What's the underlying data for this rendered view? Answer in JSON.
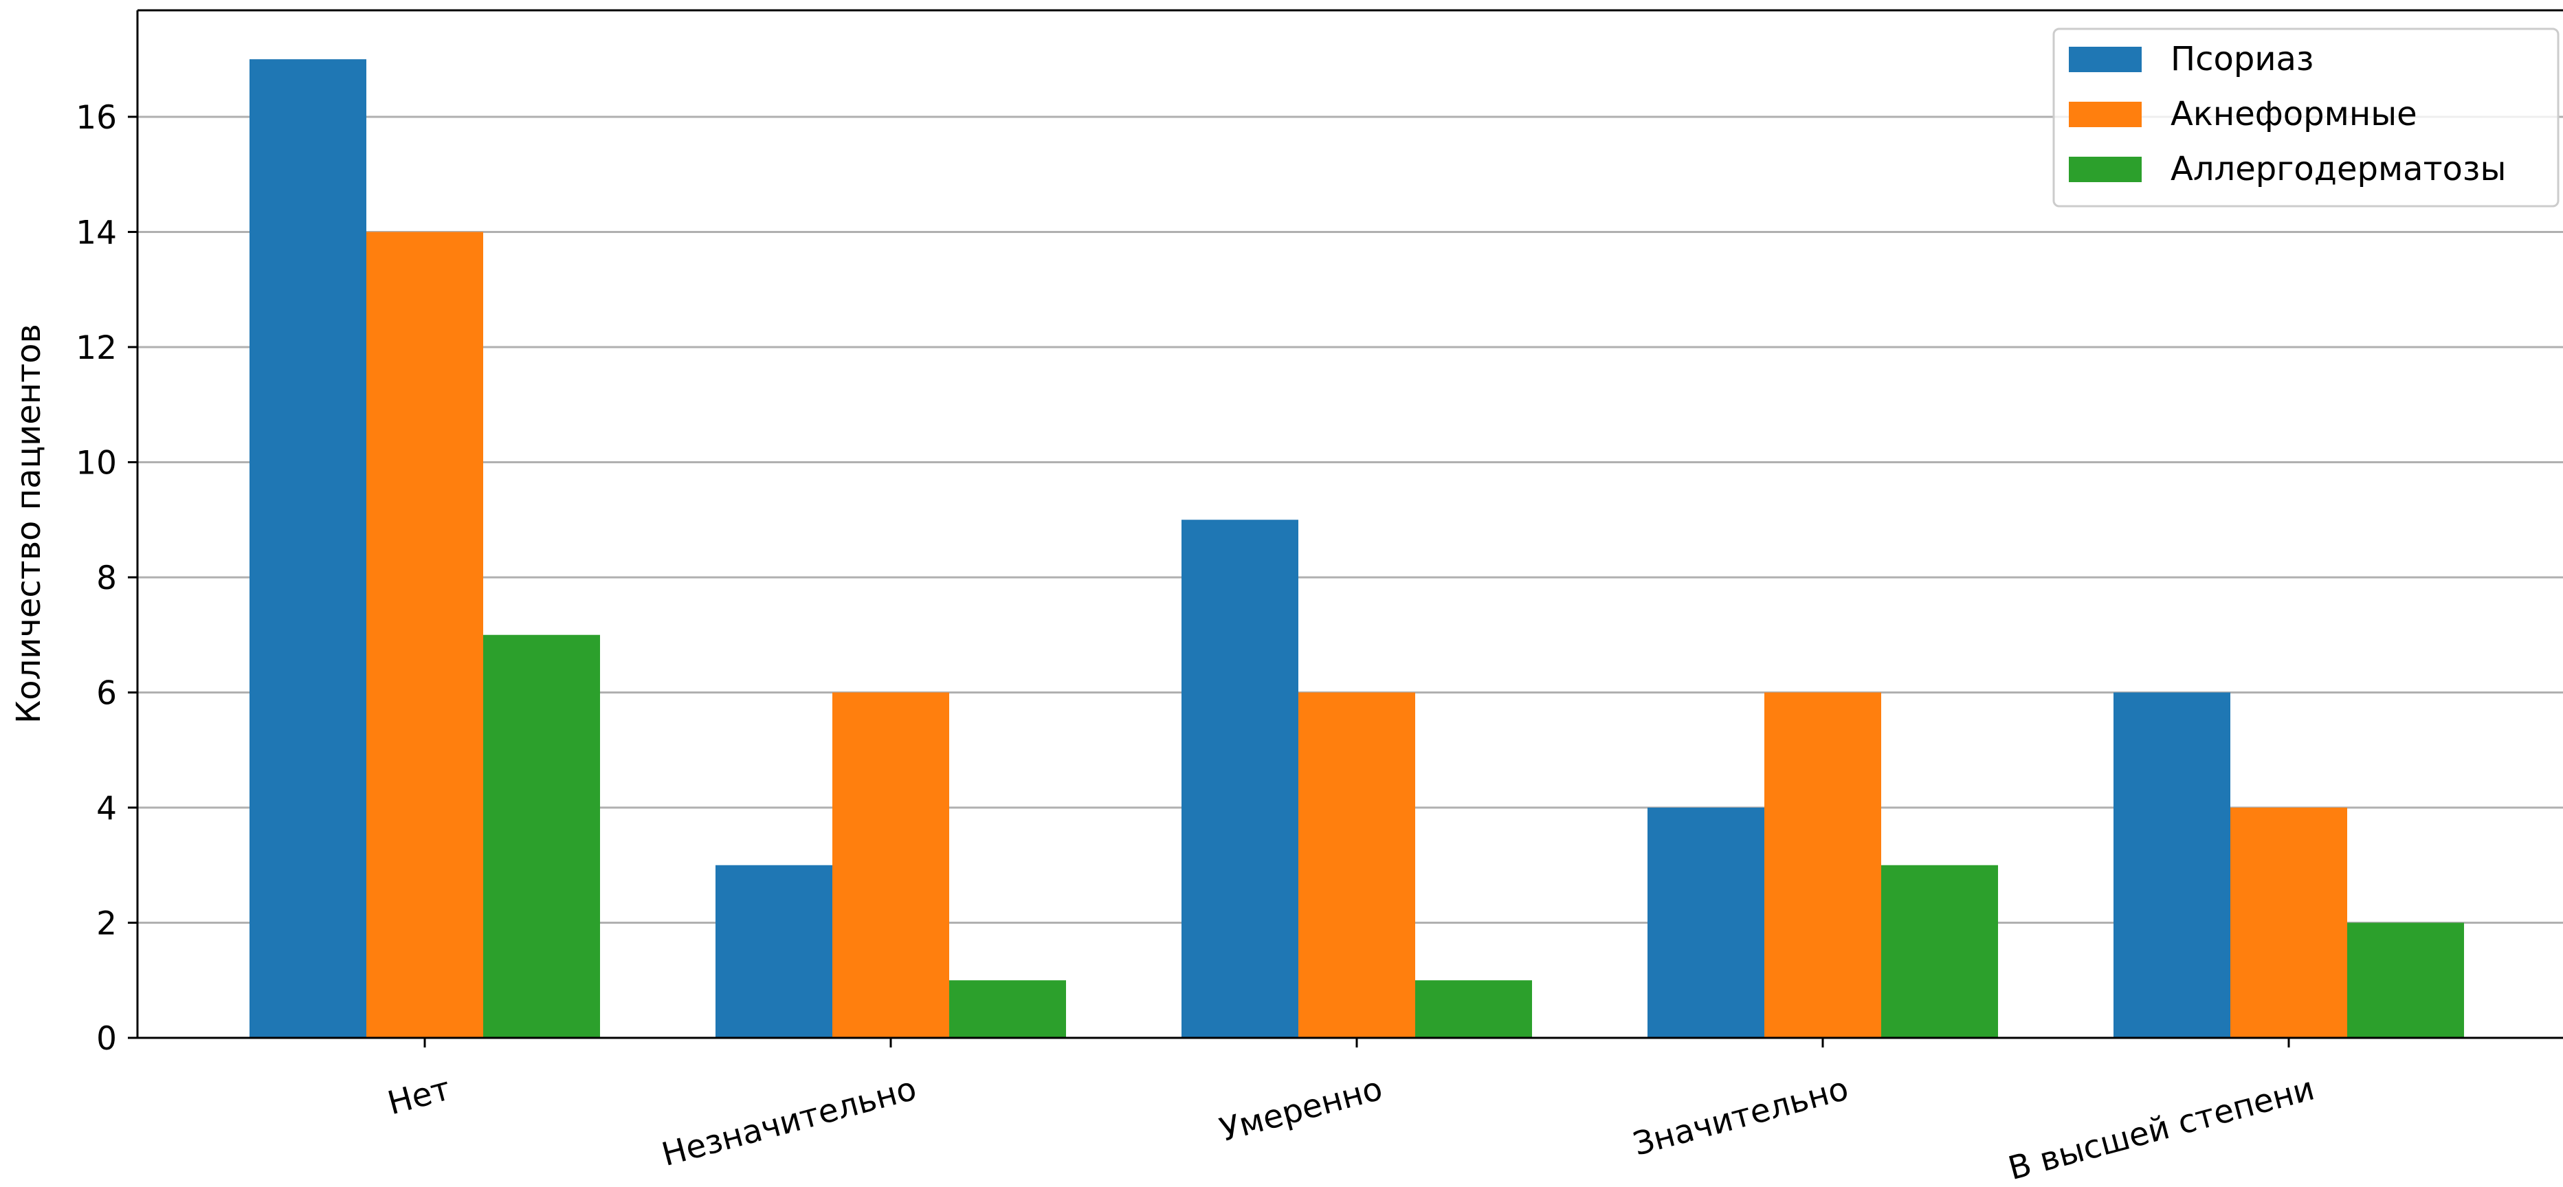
{
  "chart_data": {
    "type": "bar",
    "title": "",
    "xlabel": "",
    "ylabel": "Количество пациентов",
    "categories": [
      "Нет",
      "Незначительно",
      "Умеренно",
      "Значительно",
      "В высшей степени"
    ],
    "series": [
      {
        "name": "Псориаз",
        "color": "#1f77b4",
        "values": [
          17,
          3,
          9,
          4,
          6
        ]
      },
      {
        "name": "Акнеформные",
        "color": "#ff7f0e",
        "values": [
          14,
          6,
          6,
          6,
          4
        ]
      },
      {
        "name": "Аллергодерматозы",
        "color": "#2ca02c",
        "values": [
          7,
          1,
          1,
          3,
          2
        ]
      }
    ],
    "ylim": [
      0,
      17.85
    ],
    "yticks": [
      0,
      2,
      4,
      6,
      8,
      10,
      12,
      14,
      16
    ],
    "grid": "horizontal",
    "legend_position": "top-right",
    "xtick_rotation": "slanted"
  }
}
